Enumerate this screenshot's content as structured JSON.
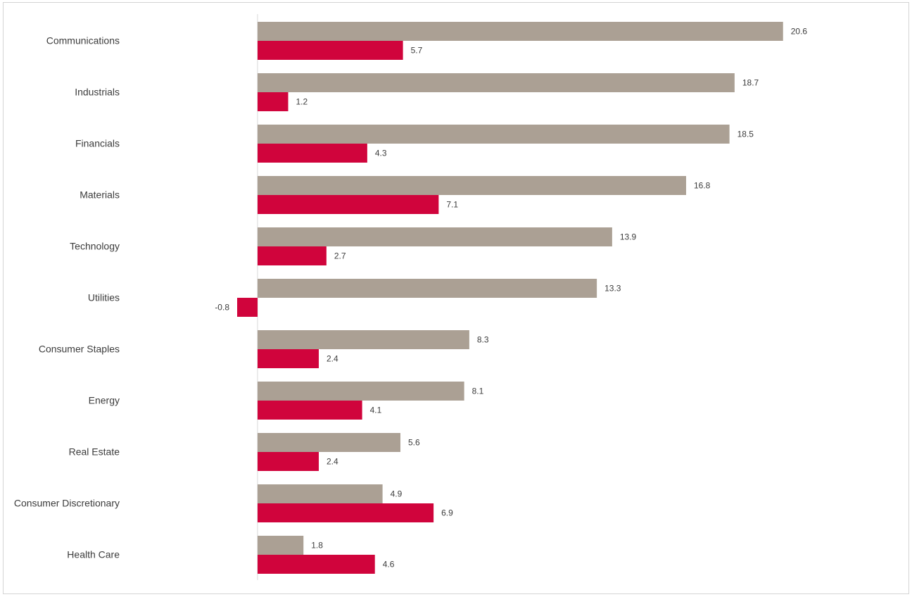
{
  "chart_data": {
    "type": "bar",
    "orientation": "horizontal",
    "title": "",
    "xlabel": "",
    "ylabel": "",
    "legend": "none",
    "grid": false,
    "categories": [
      "Communications",
      "Industrials",
      "Financials",
      "Materials",
      "Technology",
      "Utilities",
      "Consumer Staples",
      "Energy",
      "Real Estate",
      "Consumer Discretionary",
      "Health Care"
    ],
    "series": [
      {
        "color": "#aba094",
        "values": [
          20.6,
          18.7,
          18.5,
          16.8,
          13.9,
          13.3,
          8.3,
          8.1,
          5.6,
          4.9,
          1.8
        ]
      },
      {
        "color": "#d0043c",
        "values": [
          5.7,
          1.2,
          4.3,
          7.1,
          2.7,
          -0.8,
          2.4,
          4.1,
          2.4,
          6.9,
          4.6
        ]
      }
    ],
    "value_labels": [
      [
        "20.6",
        "18.7",
        "18.5",
        "16.8",
        "13.9",
        "13.3",
        "8.3",
        "8.1",
        "5.6",
        "4.9",
        "1.8"
      ],
      [
        "5.7",
        "1.2",
        "4.3",
        "7.1",
        "2.7",
        "-0.8",
        "2.4",
        "4.1",
        "2.4",
        "6.9",
        "4.6"
      ]
    ],
    "axis_color": "#d9d9d9"
  }
}
